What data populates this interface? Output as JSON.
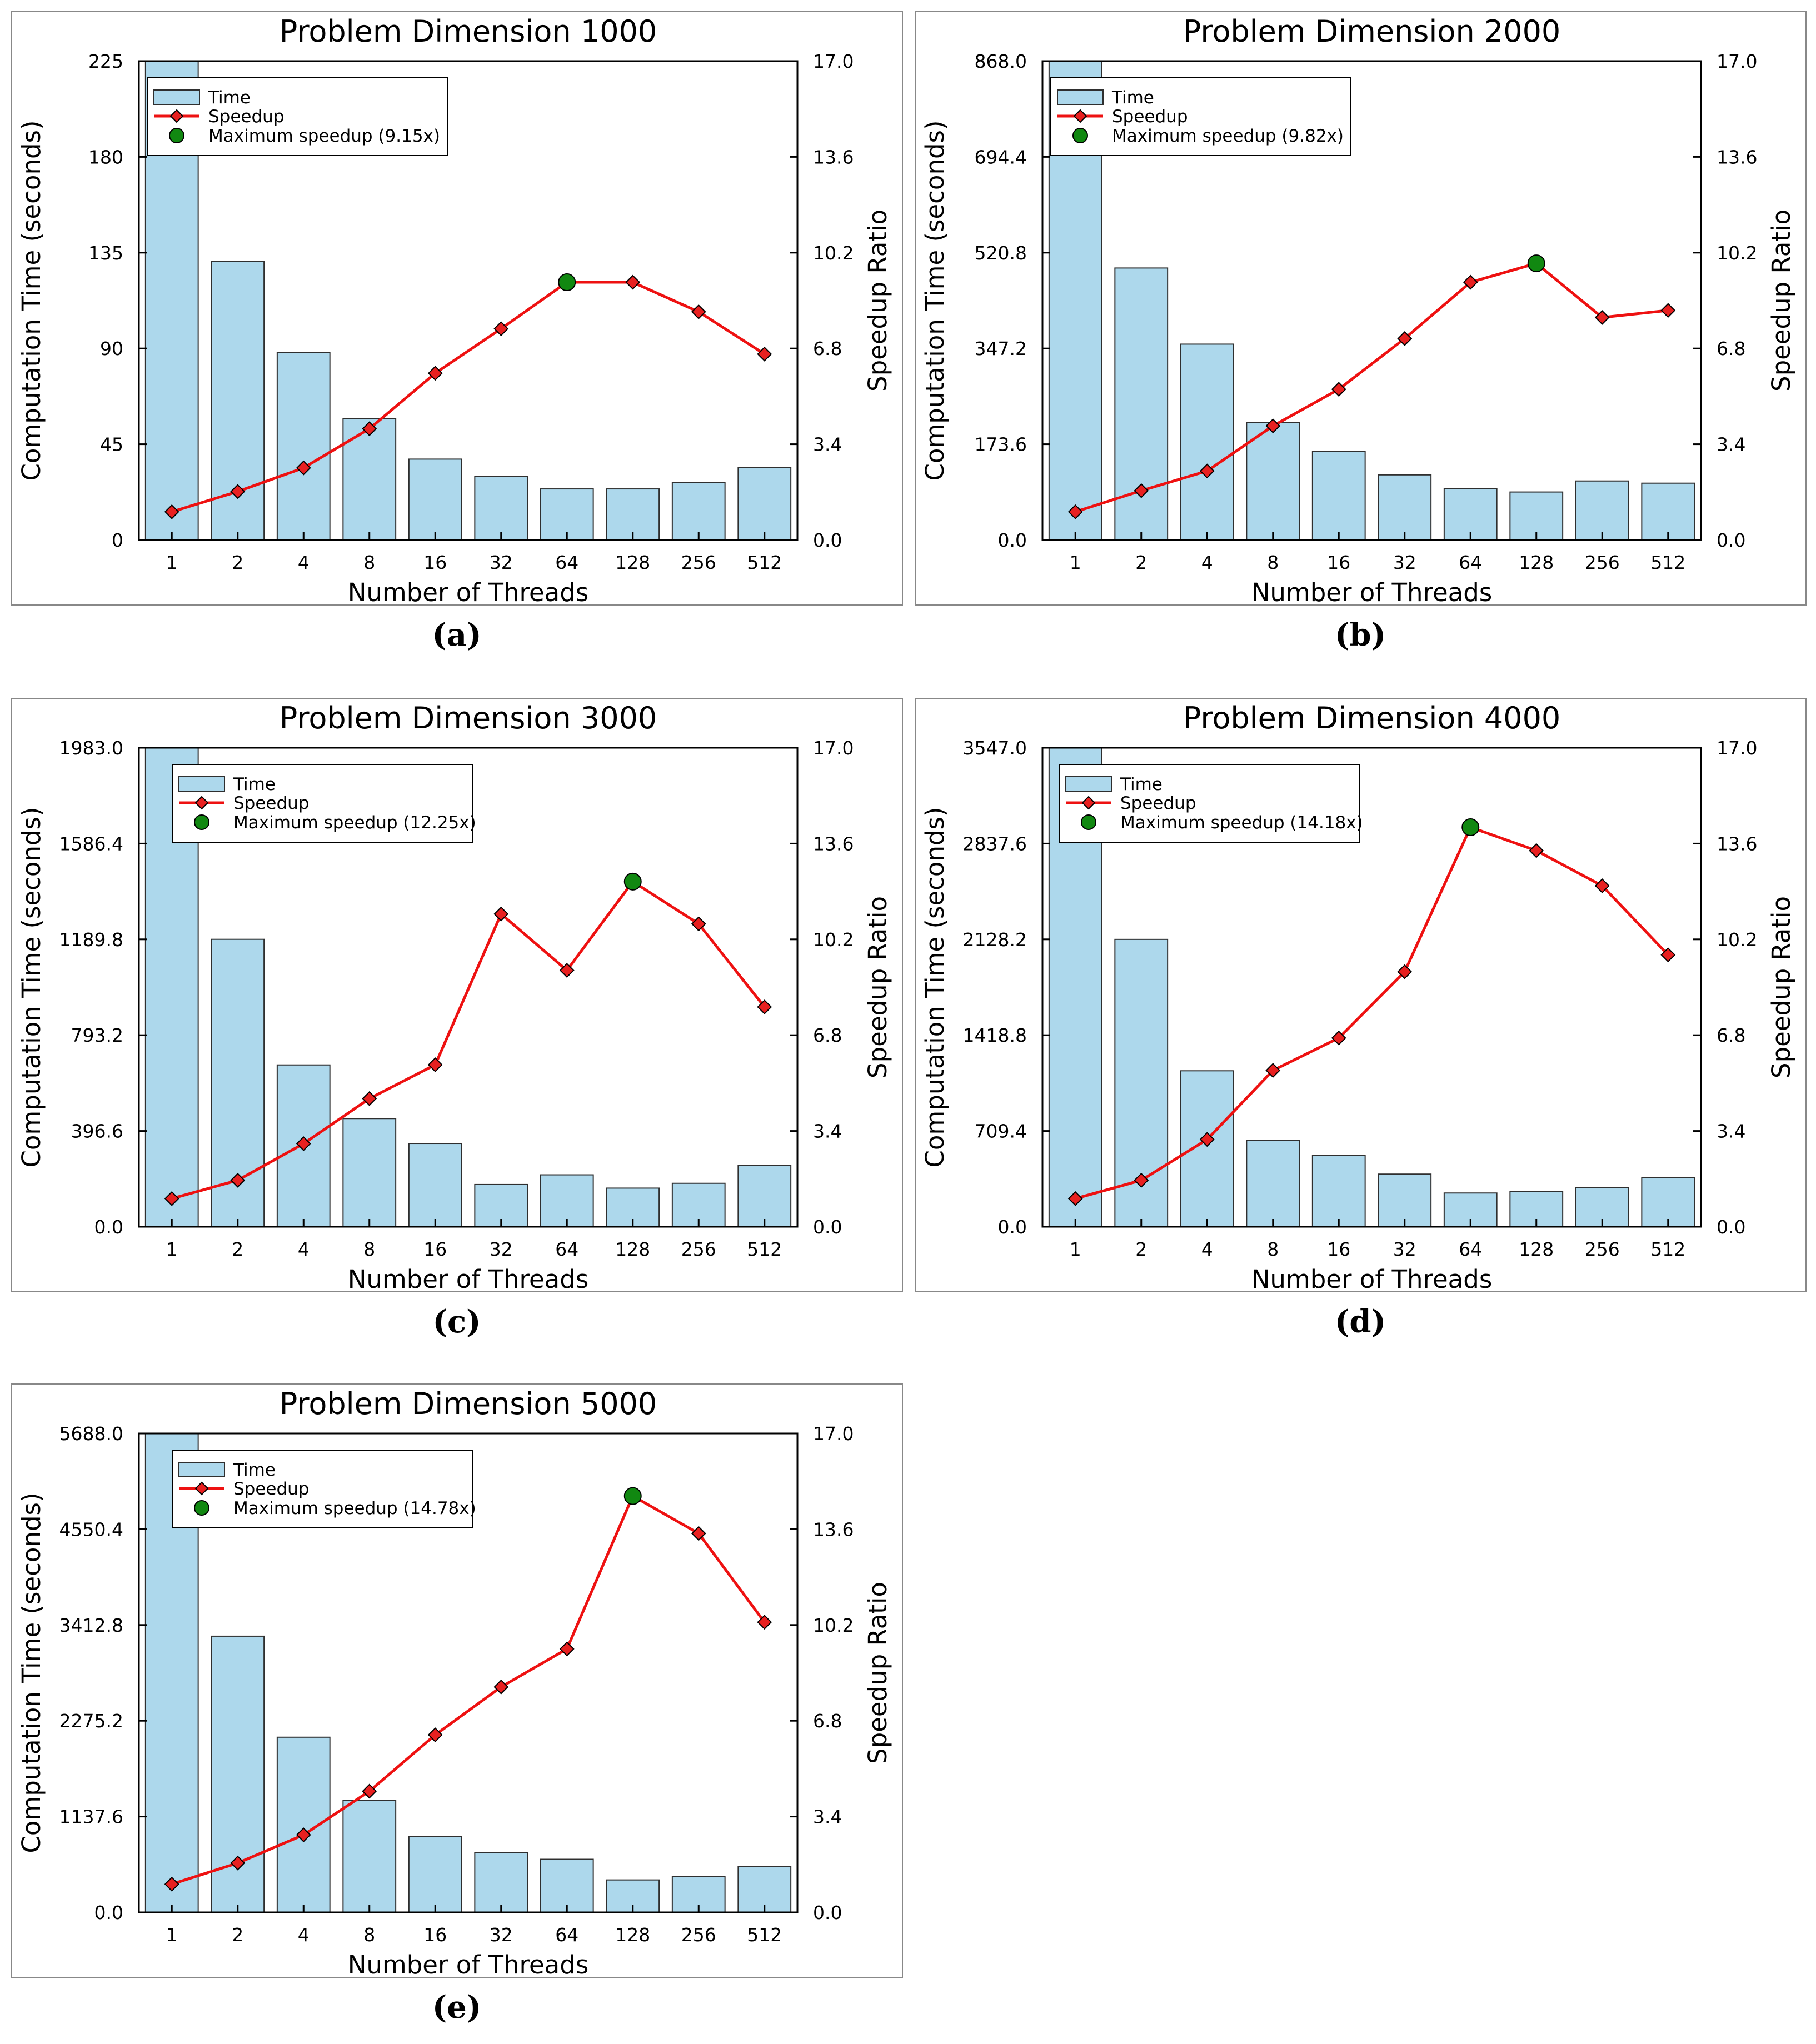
{
  "figure": {
    "captions": [
      "(a)",
      "(b)",
      "(c)",
      "(d)",
      "(e)"
    ]
  },
  "colors": {
    "bar_fill": "#add8ec",
    "bar_stroke": "#2f2f2f",
    "speedup_line": "#ee1111",
    "speedup_marker": "#e82020",
    "max_marker": "#118811"
  },
  "chart_data": [
    {
      "type": "bar",
      "title": "Problem Dimension 1000",
      "xlabel": "Number of Threads",
      "ylabel": "Computation Time (seconds)",
      "y2label": "Speedup Ratio",
      "categories": [
        "1",
        "2",
        "4",
        "8",
        "16",
        "32",
        "64",
        "128",
        "256",
        "512"
      ],
      "ylim": [
        0,
        225
      ],
      "yticks": [
        "0",
        "45",
        "90",
        "135",
        "180",
        "225"
      ],
      "y2lim": [
        0,
        17
      ],
      "y2ticks": [
        "0.0",
        "3.4",
        "6.8",
        "10.2",
        "13.6",
        "17.0"
      ],
      "series": [
        {
          "name": "Time",
          "kind": "bar",
          "axis": "left",
          "values": [
            225,
            131,
            88,
            57,
            38,
            30,
            24,
            24,
            27,
            34
          ]
        },
        {
          "name": "Speedup",
          "kind": "line",
          "axis": "right",
          "values": [
            1.0,
            1.72,
            2.56,
            3.95,
            5.92,
            7.5,
            9.15,
            9.15,
            8.1,
            6.6
          ]
        }
      ],
      "max_speedup": {
        "label": "Maximum speedup (9.15x)",
        "category": "64",
        "value": 9.15
      },
      "legend": [
        "Time",
        "Speedup",
        "Maximum speedup (9.15x)"
      ],
      "legend_position": "top-left"
    },
    {
      "type": "bar",
      "title": "Problem Dimension 2000",
      "xlabel": "Number of Threads",
      "ylabel": "Computation Time (seconds)",
      "y2label": "Speedup Ratio",
      "categories": [
        "1",
        "2",
        "4",
        "8",
        "16",
        "32",
        "64",
        "128",
        "256",
        "512"
      ],
      "ylim": [
        0,
        868
      ],
      "yticks": [
        "0.0",
        "173.6",
        "347.2",
        "520.8",
        "694.4",
        "868.0"
      ],
      "y2lim": [
        0,
        17
      ],
      "y2ticks": [
        "0.0",
        "3.4",
        "6.8",
        "10.2",
        "13.6",
        "17.0"
      ],
      "series": [
        {
          "name": "Time",
          "kind": "bar",
          "axis": "left",
          "values": [
            868,
            493,
            355,
            213,
            161,
            118,
            93,
            87,
            107,
            103
          ]
        },
        {
          "name": "Speedup",
          "kind": "line",
          "axis": "right",
          "values": [
            1.0,
            1.75,
            2.45,
            4.05,
            5.35,
            7.15,
            9.15,
            9.82,
            7.9,
            8.15
          ]
        }
      ],
      "max_speedup": {
        "label": "Maximum speedup (9.82x)",
        "category": "128",
        "value": 9.82
      },
      "legend": [
        "Time",
        "Speedup",
        "Maximum speedup (9.82x)"
      ],
      "legend_position": "top-left"
    },
    {
      "type": "bar",
      "title": "Problem Dimension 3000",
      "xlabel": "Number of Threads",
      "ylabel": "Computation Time (seconds)",
      "y2label": "Speedup Ratio",
      "categories": [
        "1",
        "2",
        "4",
        "8",
        "16",
        "32",
        "64",
        "128",
        "256",
        "512"
      ],
      "ylim": [
        0,
        1983
      ],
      "yticks": [
        "0.0",
        "396.6",
        "793.2",
        "1189.8",
        "1586.4",
        "1983.0"
      ],
      "y2lim": [
        0,
        17
      ],
      "y2ticks": [
        "0.0",
        "3.4",
        "6.8",
        "10.2",
        "13.6",
        "17.0"
      ],
      "series": [
        {
          "name": "Time",
          "kind": "bar",
          "axis": "left",
          "values": [
            1983,
            1190,
            670,
            448,
            345,
            175,
            215,
            160,
            180,
            255
          ]
        },
        {
          "name": "Speedup",
          "kind": "line",
          "axis": "right",
          "values": [
            1.0,
            1.65,
            2.95,
            4.55,
            5.75,
            11.1,
            9.1,
            12.25,
            10.75,
            7.8
          ]
        }
      ],
      "max_speedup": {
        "label": "Maximum speedup (12.25x)",
        "category": "128",
        "value": 12.25
      },
      "legend": [
        "Time",
        "Speedup",
        "Maximum speedup (12.25x)"
      ],
      "legend_position": "top-left"
    },
    {
      "type": "bar",
      "title": "Problem Dimension 4000",
      "xlabel": "Number of Threads",
      "ylabel": "Computation Time (seconds)",
      "y2label": "Speedup Ratio",
      "categories": [
        "1",
        "2",
        "4",
        "8",
        "16",
        "32",
        "64",
        "128",
        "256",
        "512"
      ],
      "ylim": [
        0,
        3547
      ],
      "yticks": [
        "0.0",
        "709.4",
        "1418.8",
        "2128.2",
        "2837.6",
        "3547.0"
      ],
      "y2lim": [
        0,
        17
      ],
      "y2ticks": [
        "0.0",
        "3.4",
        "6.8",
        "10.2",
        "13.6",
        "17.0"
      ],
      "series": [
        {
          "name": "Time",
          "kind": "bar",
          "axis": "left",
          "values": [
            3547,
            2128,
            1155,
            640,
            530,
            390,
            250,
            260,
            290,
            365
          ]
        },
        {
          "name": "Speedup",
          "kind": "line",
          "axis": "right",
          "values": [
            1.0,
            1.65,
            3.1,
            5.55,
            6.7,
            9.05,
            14.18,
            13.35,
            12.1,
            9.65
          ]
        }
      ],
      "max_speedup": {
        "label": "Maximum speedup (14.18x)",
        "category": "64",
        "value": 14.18
      },
      "legend": [
        "Time",
        "Speedup",
        "Maximum speedup (14.18x)"
      ],
      "legend_position": "top-left"
    },
    {
      "type": "bar",
      "title": "Problem Dimension 5000",
      "xlabel": "Number of Threads",
      "ylabel": "Computation Time (seconds)",
      "y2label": "Speedup Ratio",
      "categories": [
        "1",
        "2",
        "4",
        "8",
        "16",
        "32",
        "64",
        "128",
        "256",
        "512"
      ],
      "ylim": [
        0,
        5688
      ],
      "yticks": [
        "0.0",
        "1137.6",
        "2275.2",
        "3412.8",
        "4550.4",
        "5688.0"
      ],
      "y2lim": [
        0,
        17
      ],
      "y2ticks": [
        "0.0",
        "3.4",
        "6.8",
        "10.2",
        "13.6",
        "17.0"
      ],
      "series": [
        {
          "name": "Time",
          "kind": "bar",
          "axis": "left",
          "values": [
            5688,
            3280,
            2080,
            1330,
            900,
            710,
            630,
            385,
            425,
            545
          ]
        },
        {
          "name": "Speedup",
          "kind": "line",
          "axis": "right",
          "values": [
            1.0,
            1.75,
            2.75,
            4.3,
            6.3,
            8.0,
            9.35,
            14.78,
            13.45,
            10.3
          ]
        }
      ],
      "max_speedup": {
        "label": "Maximum speedup (14.78x)",
        "category": "128",
        "value": 14.78
      },
      "legend": [
        "Time",
        "Speedup",
        "Maximum speedup (14.78x)"
      ],
      "legend_position": "top-left"
    }
  ]
}
